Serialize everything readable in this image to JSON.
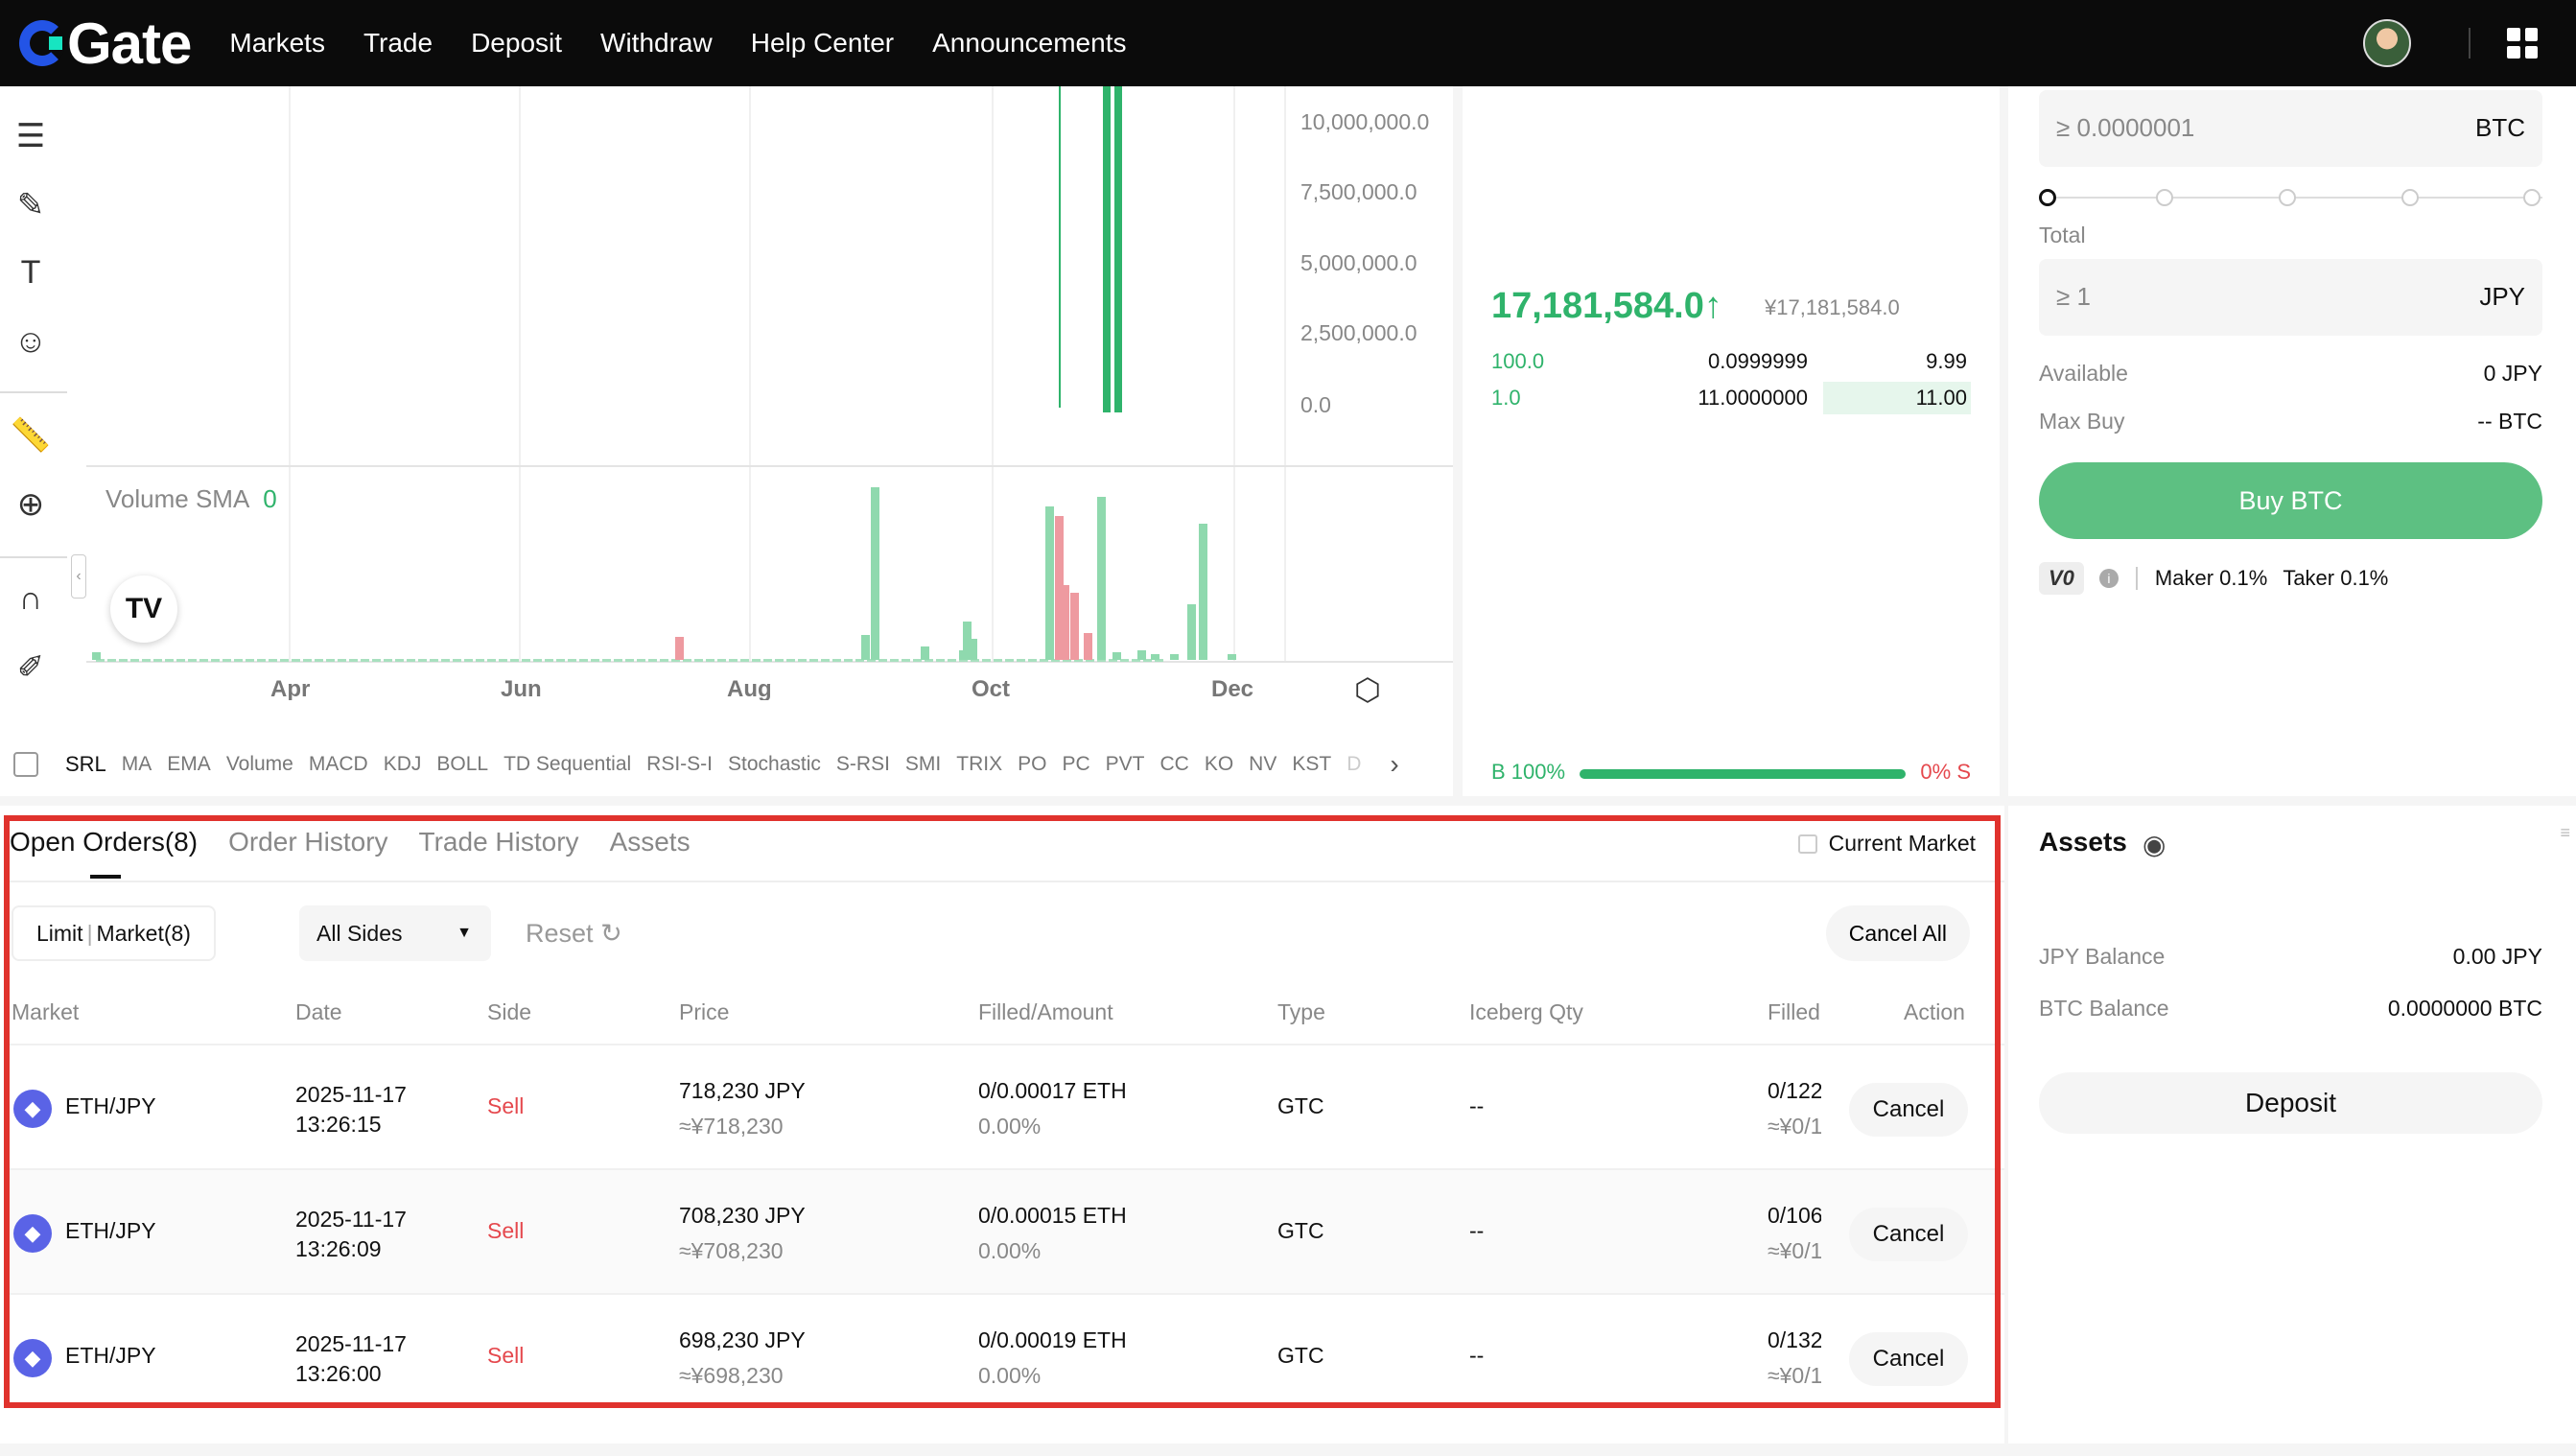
{
  "header": {
    "logo_text": "Gate",
    "nav": [
      "Markets",
      "Trade",
      "Deposit",
      "Withdraw",
      "Help Center",
      "Announcements"
    ]
  },
  "chart": {
    "price_axis": [
      "10,000,000.0",
      "7,500,000.0",
      "5,000,000.0",
      "2,500,000.0",
      "0.0"
    ],
    "volume_label": "Volume SMA",
    "volume_value": "0",
    "x_ticks": [
      "Apr",
      "Jun",
      "Aug",
      "Oct",
      "Dec"
    ],
    "tv_logo": "TV",
    "indicators": [
      "SRL",
      "MA",
      "EMA",
      "Volume",
      "MACD",
      "KDJ",
      "BOLL",
      "TD Sequential",
      "RSI-S-I",
      "Stochastic",
      "S-RSI",
      "SMI",
      "TRIX",
      "PO",
      "PC",
      "PVT",
      "CC",
      "KO",
      "NV",
      "KST",
      "D"
    ]
  },
  "orderbook": {
    "last_price": "17,181,584.0",
    "last_arrow": "↑",
    "last_fiat": "¥17,181,584.0",
    "rows": [
      {
        "price": "100.0",
        "amount": "0.0999999",
        "total": "9.99"
      },
      {
        "price": "1.0",
        "amount": "11.0000000",
        "total": "11.00"
      }
    ],
    "buy_ratio": "B 100%",
    "sell_ratio": "0% S"
  },
  "form": {
    "amount_placeholder": "≥ 0.0000001",
    "amount_currency": "BTC",
    "total_label": "Total",
    "total_placeholder": "≥ 1",
    "total_currency": "JPY",
    "available_label": "Available",
    "available_value": "0 JPY",
    "maxbuy_label": "Max Buy",
    "maxbuy_value": "-- BTC",
    "buy_label": "Buy BTC",
    "vip": "V0",
    "maker": "Maker 0.1%",
    "taker": "Taker 0.1%"
  },
  "orders": {
    "tabs": [
      "Open Orders(8)",
      "Order History",
      "Trade History",
      "Assets"
    ],
    "current_market": "Current Market",
    "filter_limit": "Limit",
    "filter_market": "Market(8)",
    "sides": "All Sides",
    "reset": "Reset",
    "cancel_all": "Cancel All",
    "columns": [
      "Market",
      "Date",
      "Side",
      "Price",
      "Filled/Amount",
      "Type",
      "Iceberg Qty",
      "Filled",
      "Action"
    ],
    "rows": [
      {
        "market": "ETH/JPY",
        "date": "2025-11-17",
        "time": "13:26:15",
        "side": "Sell",
        "price": "718,230 JPY",
        "price_fiat": "≈¥718,230",
        "filled": "0/0.00017 ETH",
        "filled_pct": "0.00%",
        "type": "GTC",
        "iceberg": "--",
        "filled_total": "0/122",
        "filled_total_fiat": "≈¥0/1",
        "action": "Cancel"
      },
      {
        "market": "ETH/JPY",
        "date": "2025-11-17",
        "time": "13:26:09",
        "side": "Sell",
        "price": "708,230 JPY",
        "price_fiat": "≈¥708,230",
        "filled": "0/0.00015 ETH",
        "filled_pct": "0.00%",
        "type": "GTC",
        "iceberg": "--",
        "filled_total": "0/106",
        "filled_total_fiat": "≈¥0/1",
        "action": "Cancel"
      },
      {
        "market": "ETH/JPY",
        "date": "2025-11-17",
        "time": "13:26:00",
        "side": "Sell",
        "price": "698,230 JPY",
        "price_fiat": "≈¥698,230",
        "filled": "0/0.00019 ETH",
        "filled_pct": "0.00%",
        "type": "GTC",
        "iceberg": "--",
        "filled_total": "0/132",
        "filled_total_fiat": "≈¥0/1",
        "action": "Cancel"
      }
    ]
  },
  "assets": {
    "title": "Assets",
    "jpy_label": "JPY Balance",
    "jpy_value": "0.00 JPY",
    "btc_label": "BTC Balance",
    "btc_value": "0.0000000 BTC",
    "deposit": "Deposit"
  },
  "colors": {
    "accent_green": "#2fb36b",
    "sell_red": "#e5484d",
    "highlight": "#e0322d"
  }
}
